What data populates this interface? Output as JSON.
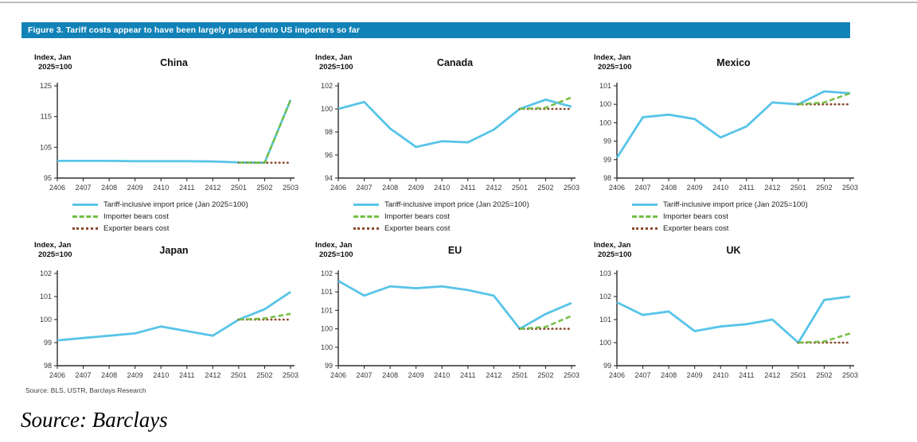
{
  "page": {
    "figure_title": "Figure 3. Tariff costs appear to have been largely passed onto US importers so far",
    "chart_source_note": "Source: BLS, USTR, Barclays Research",
    "caption": "Source: Barclays"
  },
  "colors": {
    "header_bg": "#1182B7",
    "tariff_line": "#58C4E8",
    "importer_line": "#74BF44",
    "exporter_line": "#8B4A2E",
    "axis": "#2e2e2e"
  },
  "axis_label_lines": [
    "Index, Jan",
    "2025=100"
  ],
  "legend": {
    "items": [
      {
        "key": "tariff",
        "style": "solid",
        "color_key": "tariff_line",
        "label": "Tariff-inclusive import price (Jan 2025=100)"
      },
      {
        "key": "importer",
        "style": "dashed",
        "color_key": "importer_line",
        "label": "Importer bears cost"
      },
      {
        "key": "exporter",
        "style": "dotted",
        "color_key": "exporter_line",
        "label": "Exporter bears cost"
      }
    ]
  },
  "chart_data": [
    {
      "type": "line",
      "title": "China",
      "ylabel": "Index, Jan 2025=100",
      "categories": [
        "2406",
        "2407",
        "2408",
        "2409",
        "2410",
        "2411",
        "2412",
        "2501",
        "2502",
        "2503"
      ],
      "ylim": [
        95,
        125
      ],
      "yticks": [
        95,
        105,
        115,
        125
      ],
      "ytick_labels": [
        "95",
        "105",
        "115",
        "125"
      ],
      "legend_visible": true,
      "series": [
        {
          "key": "tariff",
          "name": "Tariff-inclusive import price (Jan 2025=100)",
          "values": [
            100.6,
            100.6,
            100.6,
            100.5,
            100.5,
            100.5,
            100.4,
            100.1,
            100.0,
            120.4
          ]
        },
        {
          "key": "importer",
          "name": "Importer bears cost",
          "values": [
            null,
            null,
            null,
            null,
            null,
            null,
            null,
            100.0,
            100.0,
            120.4
          ]
        },
        {
          "key": "exporter",
          "name": "Exporter bears cost",
          "values": [
            null,
            null,
            null,
            null,
            null,
            null,
            null,
            100.0,
            100.0,
            100.0
          ]
        }
      ]
    },
    {
      "type": "line",
      "title": "Canada",
      "ylabel": "Index, Jan 2025=100",
      "categories": [
        "2406",
        "2407",
        "2408",
        "2409",
        "2410",
        "2411",
        "2412",
        "2501",
        "2502",
        "2503"
      ],
      "ylim": [
        94,
        102
      ],
      "yticks": [
        94,
        96,
        98,
        100,
        102
      ],
      "ytick_labels": [
        "94",
        "96",
        "98",
        "100",
        "102"
      ],
      "legend_visible": true,
      "series": [
        {
          "key": "tariff",
          "name": "Tariff-inclusive import price (Jan 2025=100)",
          "values": [
            100.0,
            100.6,
            98.3,
            96.7,
            97.2,
            97.1,
            98.2,
            100.0,
            100.8,
            100.2
          ]
        },
        {
          "key": "importer",
          "name": "Importer bears cost",
          "values": [
            null,
            null,
            null,
            null,
            null,
            null,
            null,
            100.0,
            100.1,
            101.0
          ]
        },
        {
          "key": "exporter",
          "name": "Exporter bears cost",
          "values": [
            null,
            null,
            null,
            null,
            null,
            null,
            null,
            100.0,
            100.0,
            100.0
          ]
        }
      ]
    },
    {
      "type": "line",
      "title": "Mexico",
      "ylabel": "Index, Jan 2025=100",
      "categories": [
        "2406",
        "2407",
        "2408",
        "2409",
        "2410",
        "2411",
        "2412",
        "2501",
        "2502",
        "2503"
      ],
      "ylim": [
        98,
        100.5
      ],
      "yticks": [
        98,
        98.5,
        99,
        99.5,
        100,
        100.5
      ],
      "ytick_labels": [
        "98",
        "99",
        "99",
        "100",
        "100",
        "101"
      ],
      "legend_visible": true,
      "series": [
        {
          "key": "tariff",
          "name": "Tariff-inclusive import price (Jan 2025=100)",
          "values": [
            98.55,
            99.65,
            99.72,
            99.6,
            99.1,
            99.4,
            100.05,
            100.0,
            100.35,
            100.3
          ]
        },
        {
          "key": "importer",
          "name": "Importer bears cost",
          "values": [
            null,
            null,
            null,
            null,
            null,
            null,
            null,
            100.0,
            100.05,
            100.3
          ]
        },
        {
          "key": "exporter",
          "name": "Exporter bears cost",
          "values": [
            null,
            null,
            null,
            null,
            null,
            null,
            null,
            100.0,
            100.0,
            100.0
          ]
        }
      ]
    },
    {
      "type": "line",
      "title": "Japan",
      "ylabel": "Index, Jan 2025=100",
      "categories": [
        "2406",
        "2407",
        "2408",
        "2409",
        "2410",
        "2411",
        "2412",
        "2501",
        "2502",
        "2503"
      ],
      "ylim": [
        98,
        102
      ],
      "yticks": [
        98,
        99,
        100,
        101,
        102
      ],
      "ytick_labels": [
        "98",
        "99",
        "100",
        "101",
        "102"
      ],
      "legend_visible": false,
      "series": [
        {
          "key": "tariff",
          "name": "Tariff-inclusive import price (Jan 2025=100)",
          "values": [
            99.1,
            99.2,
            99.3,
            99.4,
            99.7,
            99.5,
            99.3,
            100.0,
            100.45,
            101.2
          ]
        },
        {
          "key": "importer",
          "name": "Importer bears cost",
          "values": [
            null,
            null,
            null,
            null,
            null,
            null,
            null,
            100.0,
            100.05,
            100.25
          ]
        },
        {
          "key": "exporter",
          "name": "Exporter bears cost",
          "values": [
            null,
            null,
            null,
            null,
            null,
            null,
            null,
            100.0,
            100.0,
            100.0
          ]
        }
      ]
    },
    {
      "type": "line",
      "title": "EU",
      "ylabel": "Index, Jan 2025=100",
      "categories": [
        "2406",
        "2407",
        "2408",
        "2409",
        "2410",
        "2411",
        "2412",
        "2501",
        "2502",
        "2503"
      ],
      "ylim": [
        99,
        101.5
      ],
      "yticks": [
        99,
        99.5,
        100,
        100.5,
        101,
        101.5
      ],
      "ytick_labels": [
        "99",
        "100",
        "100",
        "101",
        "101",
        "102"
      ],
      "legend_visible": false,
      "series": [
        {
          "key": "tariff",
          "name": "Tariff-inclusive import price (Jan 2025=100)",
          "values": [
            101.3,
            100.9,
            101.15,
            101.1,
            101.15,
            101.05,
            100.9,
            100.0,
            100.4,
            100.7
          ]
        },
        {
          "key": "importer",
          "name": "Importer bears cost",
          "values": [
            null,
            null,
            null,
            null,
            null,
            null,
            null,
            100.0,
            100.05,
            100.35
          ]
        },
        {
          "key": "exporter",
          "name": "Exporter bears cost",
          "values": [
            null,
            null,
            null,
            null,
            null,
            null,
            null,
            100.0,
            100.0,
            100.0
          ]
        }
      ]
    },
    {
      "type": "line",
      "title": "UK",
      "ylabel": "Index, Jan 2025=100",
      "categories": [
        "2406",
        "2407",
        "2408",
        "2409",
        "2410",
        "2411",
        "2412",
        "2501",
        "2502",
        "2503"
      ],
      "ylim": [
        99,
        103
      ],
      "yticks": [
        99,
        100,
        101,
        102,
        103
      ],
      "ytick_labels": [
        "99",
        "100",
        "101",
        "102",
        "103"
      ],
      "legend_visible": false,
      "series": [
        {
          "key": "tariff",
          "name": "Tariff-inclusive import price (Jan 2025=100)",
          "values": [
            101.75,
            101.2,
            101.35,
            100.5,
            100.7,
            100.8,
            101.0,
            100.0,
            101.85,
            102.0
          ]
        },
        {
          "key": "importer",
          "name": "Importer bears cost",
          "values": [
            null,
            null,
            null,
            null,
            null,
            null,
            null,
            100.0,
            100.05,
            100.4
          ]
        },
        {
          "key": "exporter",
          "name": "Exporter bears cost",
          "values": [
            null,
            null,
            null,
            null,
            null,
            null,
            null,
            100.0,
            100.0,
            100.0
          ]
        }
      ]
    }
  ]
}
